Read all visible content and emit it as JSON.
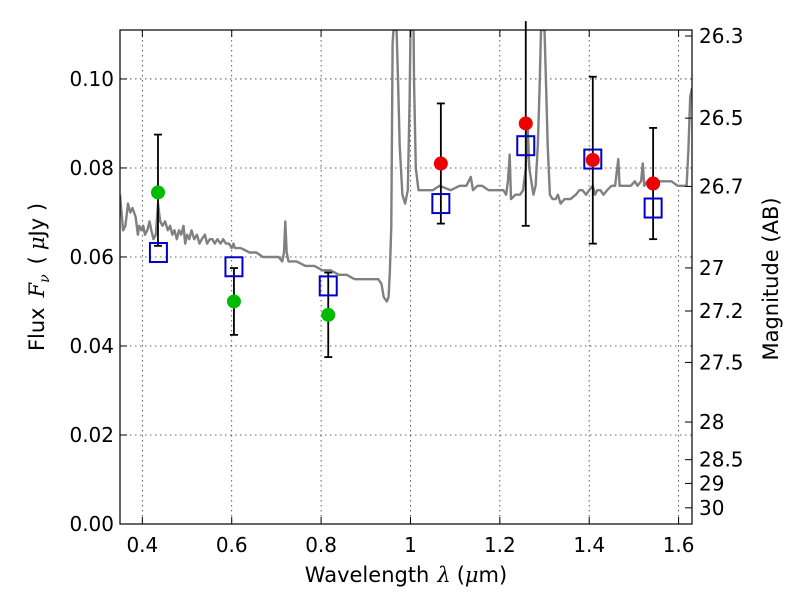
{
  "chart_data": {
    "type": "scatter",
    "xlabel_text": "Wavelength",
    "xlabel_symbol": "λ",
    "xlabel_unit_open": "(",
    "xlabel_unit_mu": "μ",
    "xlabel_unit_rest": "m)",
    "ylabel_text": "Flux",
    "ylabel_symbol": "F",
    "ylabel_subscript": "ν",
    "ylabel_unit_open": "(",
    "ylabel_unit_mu": "μ",
    "ylabel_unit_rest": "Jy )",
    "y2label": "Magnitude (AB)",
    "xlim": [
      0.35,
      1.63
    ],
    "ylim": [
      0.0,
      0.111
    ],
    "grid": true,
    "x_ticks": [
      0.4,
      0.6,
      0.8,
      1.0,
      1.2,
      1.4,
      1.6
    ],
    "x_tick_labels": [
      "0.4",
      "0.6",
      "0.8",
      "1",
      "1.2",
      "1.4",
      "1.6"
    ],
    "y_ticks": [
      0.0,
      0.02,
      0.04,
      0.06,
      0.08,
      0.1
    ],
    "y_tick_labels": [
      "0.00",
      "0.02",
      "0.04",
      "0.06",
      "0.08",
      "0.10"
    ],
    "magnitude_ticks": [
      {
        "mag": 26.3,
        "label": "26.3"
      },
      {
        "mag": 26.5,
        "label": "26.5"
      },
      {
        "mag": 26.7,
        "label": "26.7"
      },
      {
        "mag": 27.0,
        "label": "27"
      },
      {
        "mag": 27.2,
        "label": "27.2"
      },
      {
        "mag": 27.5,
        "label": "27.5"
      },
      {
        "mag": 28.0,
        "label": "28"
      },
      {
        "mag": 28.5,
        "label": "28.5"
      },
      {
        "mag": 29.0,
        "label": "29"
      },
      {
        "mag": 30.0,
        "label": "30"
      }
    ],
    "series": [
      {
        "name": "model spectrum",
        "kind": "line",
        "color": "#808080",
        "points": [
          [
            0.35,
            0.074
          ],
          [
            0.357,
            0.066
          ],
          [
            0.362,
            0.067
          ],
          [
            0.368,
            0.072
          ],
          [
            0.373,
            0.07
          ],
          [
            0.378,
            0.071
          ],
          [
            0.385,
            0.069
          ],
          [
            0.39,
            0.065
          ],
          [
            0.393,
            0.067
          ],
          [
            0.398,
            0.066
          ],
          [
            0.402,
            0.067
          ],
          [
            0.406,
            0.065
          ],
          [
            0.411,
            0.066
          ],
          [
            0.416,
            0.068
          ],
          [
            0.42,
            0.066
          ],
          [
            0.425,
            0.064
          ],
          [
            0.43,
            0.065
          ],
          [
            0.435,
            0.072
          ],
          [
            0.44,
            0.068
          ],
          [
            0.445,
            0.067
          ],
          [
            0.451,
            0.068
          ],
          [
            0.457,
            0.066
          ],
          [
            0.462,
            0.067
          ],
          [
            0.467,
            0.065
          ],
          [
            0.472,
            0.066
          ],
          [
            0.477,
            0.064
          ],
          [
            0.482,
            0.066
          ],
          [
            0.487,
            0.065
          ],
          [
            0.492,
            0.067
          ],
          [
            0.496,
            0.063
          ],
          [
            0.5,
            0.065
          ],
          [
            0.505,
            0.064
          ],
          [
            0.51,
            0.066
          ],
          [
            0.516,
            0.064
          ],
          [
            0.522,
            0.065
          ],
          [
            0.528,
            0.063
          ],
          [
            0.533,
            0.064
          ],
          [
            0.54,
            0.065
          ],
          [
            0.545,
            0.063
          ],
          [
            0.551,
            0.064
          ],
          [
            0.557,
            0.064
          ],
          [
            0.562,
            0.063
          ],
          [
            0.568,
            0.064
          ],
          [
            0.575,
            0.063
          ],
          [
            0.581,
            0.064
          ],
          [
            0.587,
            0.063
          ],
          [
            0.594,
            0.063
          ],
          [
            0.6,
            0.062
          ],
          [
            0.604,
            0.063
          ],
          [
            0.607,
            0.062
          ],
          [
            0.62,
            0.062
          ],
          [
            0.64,
            0.061
          ],
          [
            0.655,
            0.061
          ],
          [
            0.67,
            0.06
          ],
          [
            0.69,
            0.06
          ],
          [
            0.705,
            0.06
          ],
          [
            0.713,
            0.059
          ],
          [
            0.717,
            0.061
          ],
          [
            0.72,
            0.068
          ],
          [
            0.723,
            0.061
          ],
          [
            0.727,
            0.059
          ],
          [
            0.745,
            0.059
          ],
          [
            0.765,
            0.058
          ],
          [
            0.785,
            0.058
          ],
          [
            0.803,
            0.057
          ],
          [
            0.821,
            0.057
          ],
          [
            0.84,
            0.056
          ],
          [
            0.857,
            0.056
          ],
          [
            0.875,
            0.055
          ],
          [
            0.895,
            0.055
          ],
          [
            0.915,
            0.055
          ],
          [
            0.928,
            0.055
          ],
          [
            0.935,
            0.054
          ],
          [
            0.94,
            0.051
          ],
          [
            0.947,
            0.05
          ],
          [
            0.951,
            0.051
          ],
          [
            0.954,
            0.057
          ],
          [
            0.957,
            0.067
          ],
          [
            0.96,
            0.108
          ],
          [
            0.962,
            0.111
          ],
          [
            0.969,
            0.111
          ],
          [
            0.972,
            0.1
          ],
          [
            0.976,
            0.085
          ],
          [
            0.982,
            0.074
          ],
          [
            0.988,
            0.072
          ],
          [
            0.994,
            0.075
          ],
          [
            0.998,
            0.095
          ],
          [
            1.0,
            0.111
          ],
          [
            1.007,
            0.111
          ],
          [
            1.008,
            0.1
          ],
          [
            1.012,
            0.08
          ],
          [
            1.018,
            0.075
          ],
          [
            1.03,
            0.075
          ],
          [
            1.05,
            0.075
          ],
          [
            1.065,
            0.076
          ],
          [
            1.09,
            0.075
          ],
          [
            1.11,
            0.076
          ],
          [
            1.125,
            0.076
          ],
          [
            1.135,
            0.078
          ],
          [
            1.14,
            0.075
          ],
          [
            1.15,
            0.076
          ],
          [
            1.16,
            0.076
          ],
          [
            1.175,
            0.075
          ],
          [
            1.19,
            0.075
          ],
          [
            1.208,
            0.075
          ],
          [
            1.214,
            0.074
          ],
          [
            1.218,
            0.077
          ],
          [
            1.222,
            0.083
          ],
          [
            1.225,
            0.073
          ],
          [
            1.235,
            0.074
          ],
          [
            1.245,
            0.074
          ],
          [
            1.252,
            0.075
          ],
          [
            1.258,
            0.08
          ],
          [
            1.262,
            0.09
          ],
          [
            1.266,
            0.08
          ],
          [
            1.275,
            0.074
          ],
          [
            1.28,
            0.076
          ],
          [
            1.285,
            0.085
          ],
          [
            1.289,
            0.098
          ],
          [
            1.292,
            0.111
          ],
          [
            1.3,
            0.111
          ],
          [
            1.303,
            0.1
          ],
          [
            1.307,
            0.085
          ],
          [
            1.312,
            0.074
          ],
          [
            1.318,
            0.073
          ],
          [
            1.325,
            0.073
          ],
          [
            1.33,
            0.074
          ],
          [
            1.336,
            0.072
          ],
          [
            1.345,
            0.073
          ],
          [
            1.358,
            0.073
          ],
          [
            1.37,
            0.074
          ],
          [
            1.378,
            0.075
          ],
          [
            1.385,
            0.075
          ],
          [
            1.393,
            0.074
          ],
          [
            1.4,
            0.075
          ],
          [
            1.408,
            0.076
          ],
          [
            1.413,
            0.074
          ],
          [
            1.418,
            0.075
          ],
          [
            1.425,
            0.075
          ],
          [
            1.432,
            0.074
          ],
          [
            1.44,
            0.075
          ],
          [
            1.45,
            0.076
          ],
          [
            1.458,
            0.076
          ],
          [
            1.465,
            0.082
          ],
          [
            1.468,
            0.076
          ],
          [
            1.48,
            0.076
          ],
          [
            1.493,
            0.076
          ],
          [
            1.502,
            0.077
          ],
          [
            1.508,
            0.076
          ],
          [
            1.516,
            0.077
          ],
          [
            1.52,
            0.081
          ],
          [
            1.523,
            0.076
          ],
          [
            1.53,
            0.077
          ],
          [
            1.54,
            0.077
          ],
          [
            1.552,
            0.077
          ],
          [
            1.562,
            0.077
          ],
          [
            1.573,
            0.077
          ],
          [
            1.584,
            0.077
          ],
          [
            1.598,
            0.076
          ],
          [
            1.61,
            0.076
          ],
          [
            1.618,
            0.076
          ],
          [
            1.622,
            0.084
          ],
          [
            1.626,
            0.096
          ],
          [
            1.63,
            0.098
          ]
        ]
      },
      {
        "name": "green observed",
        "kind": "points",
        "marker": "circle",
        "color": "#00bb00",
        "points": [
          {
            "x": 0.435,
            "y": 0.0745,
            "yerr_low": 0.0625,
            "yerr_high": 0.0875
          },
          {
            "x": 0.605,
            "y": 0.05,
            "yerr_low": 0.0425,
            "yerr_high": 0.0575
          },
          {
            "x": 0.816,
            "y": 0.047,
            "yerr_low": 0.0375,
            "yerr_high": 0.0565
          }
        ]
      },
      {
        "name": "red observed",
        "kind": "points",
        "marker": "circle",
        "color": "#ee0000",
        "points": [
          {
            "x": 1.068,
            "y": 0.081,
            "yerr_low": 0.0675,
            "yerr_high": 0.0945
          },
          {
            "x": 1.258,
            "y": 0.09,
            "yerr_low": 0.067,
            "yerr_high": 0.113
          },
          {
            "x": 1.408,
            "y": 0.0818,
            "yerr_low": 0.063,
            "yerr_high": 0.1005
          },
          {
            "x": 1.543,
            "y": 0.0765,
            "yerr_low": 0.064,
            "yerr_high": 0.089
          }
        ]
      },
      {
        "name": "model photometry",
        "kind": "points",
        "marker": "square-open",
        "color": "#0000cc",
        "points": [
          {
            "x": 0.436,
            "y": 0.061
          },
          {
            "x": 0.605,
            "y": 0.0578
          },
          {
            "x": 0.816,
            "y": 0.0535
          },
          {
            "x": 1.068,
            "y": 0.072
          },
          {
            "x": 1.258,
            "y": 0.085
          },
          {
            "x": 1.408,
            "y": 0.082
          },
          {
            "x": 1.543,
            "y": 0.071
          }
        ]
      }
    ]
  }
}
